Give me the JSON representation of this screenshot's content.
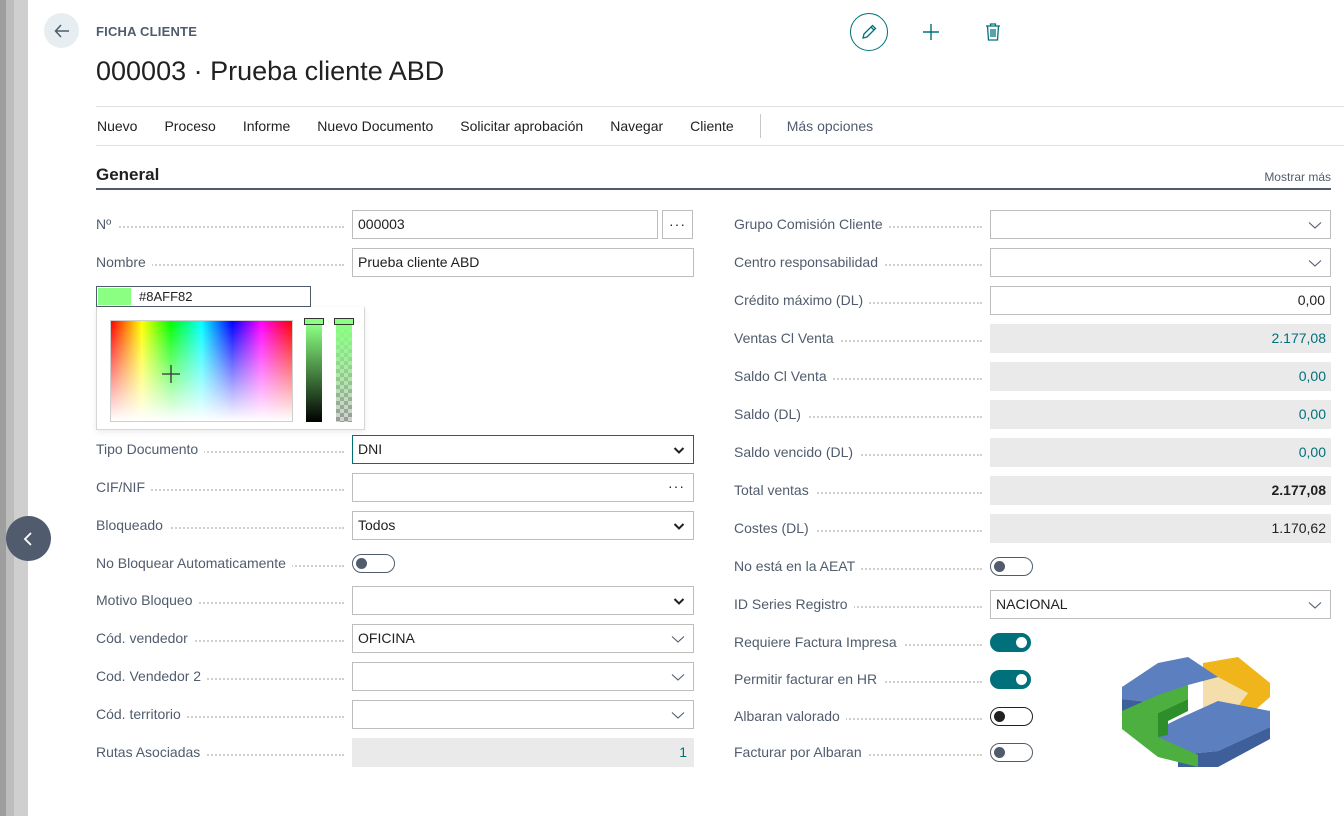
{
  "page": {
    "caption": "FICHA CLIENTE",
    "title": "000003 · Prueba cliente ABD"
  },
  "actions": [
    "Nuevo",
    "Proceso",
    "Informe",
    "Nuevo Documento",
    "Solicitar aprobación",
    "Navegar",
    "Cliente"
  ],
  "more_options": "Más opciones",
  "group": {
    "title": "General",
    "show_more": "Mostrar más"
  },
  "left_fields": {
    "no": {
      "label": "Nº",
      "value": "000003",
      "assist": "···"
    },
    "nombre": {
      "label": "Nombre",
      "value": "Prueba cliente ABD"
    },
    "color": {
      "value": "#8AFF82"
    },
    "tipo_documento": {
      "label": "Tipo Documento",
      "value": "DNI"
    },
    "cif_nif": {
      "label": "CIF/NIF",
      "value": "",
      "assist": "···"
    },
    "bloqueado": {
      "label": "Bloqueado",
      "value": "Todos"
    },
    "no_bloquear": {
      "label": "No Bloquear Automaticamente",
      "on": false
    },
    "motivo_bloqueo": {
      "label": "Motivo Bloqueo",
      "value": ""
    },
    "cod_vendedor": {
      "label": "Cód. vendedor",
      "value": "OFICINA"
    },
    "cod_vendedor2": {
      "label": "Cod. Vendedor 2",
      "value": ""
    },
    "cod_territorio": {
      "label": "Cód. territorio",
      "value": ""
    },
    "rutas_asociadas": {
      "label": "Rutas Asociadas",
      "value": "1"
    }
  },
  "right_fields": {
    "grupo_comision": {
      "label": "Grupo Comisión Cliente",
      "value": ""
    },
    "centro_resp": {
      "label": "Centro responsabilidad",
      "value": ""
    },
    "credito_maximo": {
      "label": "Crédito máximo (DL)",
      "value": "0,00"
    },
    "ventas_cl": {
      "label": "Ventas Cl Venta",
      "value": "2.177,08"
    },
    "saldo_cl": {
      "label": "Saldo Cl Venta",
      "value": "0,00"
    },
    "saldo_dl": {
      "label": "Saldo (DL)",
      "value": "0,00"
    },
    "saldo_vencido": {
      "label": "Saldo vencido (DL)",
      "value": "0,00"
    },
    "total_ventas": {
      "label": "Total ventas",
      "value": "2.177,08"
    },
    "costes": {
      "label": "Costes (DL)",
      "value": "1.170,62"
    },
    "no_aeat": {
      "label": "No está en la AEAT",
      "on": false
    },
    "id_series": {
      "label": "ID Series Registro",
      "value": "NACIONAL"
    },
    "requiere_factura": {
      "label": "Requiere Factura Impresa",
      "on": true
    },
    "permitir_hr": {
      "label": "Permitir facturar en HR",
      "on": true
    },
    "albaran_valorado": {
      "label": "Albaran valorado",
      "on": false
    },
    "facturar_albaran": {
      "label": "Facturar por Albaran",
      "on": false
    }
  },
  "icons": {
    "back": "arrow-left-icon",
    "edit": "pencil-icon",
    "add": "plus-icon",
    "delete": "trash-icon",
    "collapse": "chevron-left-icon"
  },
  "colors": {
    "accent": "#00707a",
    "label": "#505c6d",
    "picked": "#8AFF82"
  }
}
